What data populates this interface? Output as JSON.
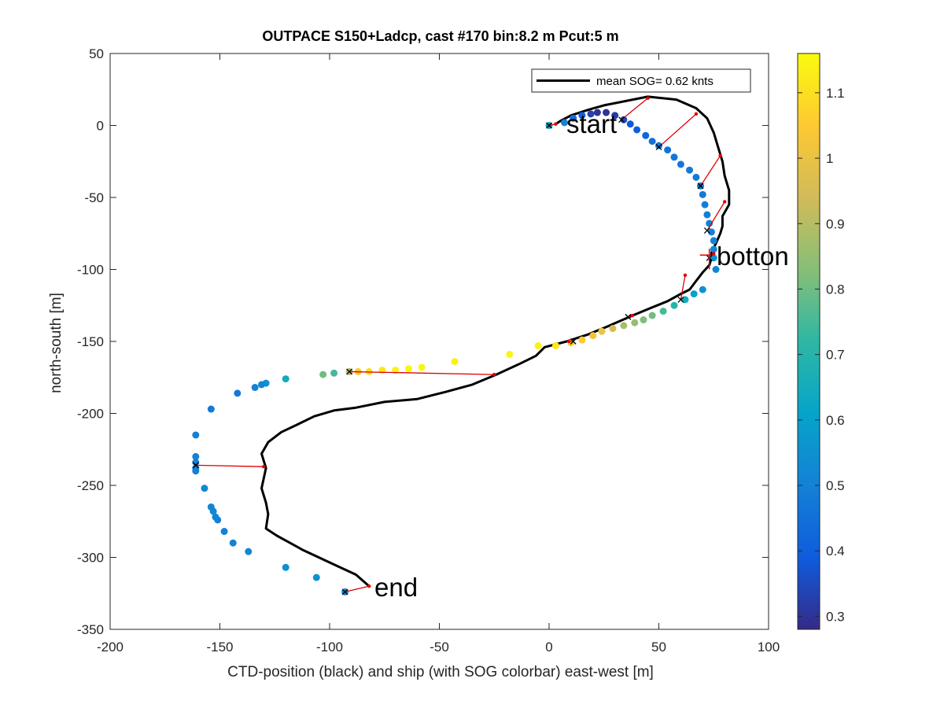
{
  "chart_data": {
    "type": "scatter",
    "title": "OUTPACE S150+Ladcp, cast #170 bin:8.2 m  Pcut:5 m",
    "xlabel": "CTD-position (black) and ship (with SOG colorbar) east-west [m]",
    "ylabel": "north-south [m]",
    "xlim": [
      -200,
      100
    ],
    "ylim": [
      -350,
      50
    ],
    "xticks": [
      -200,
      -150,
      -100,
      -50,
      0,
      50,
      100
    ],
    "yticks": [
      50,
      0,
      -50,
      -100,
      -150,
      -200,
      -250,
      -300,
      -350
    ],
    "grid": false,
    "legend": {
      "placement": "top-right",
      "entries": [
        "mean SOG=  0.62 knts"
      ]
    },
    "colorbar": {
      "range": [
        0.28,
        1.16
      ],
      "ticks": [
        0.3,
        0.4,
        0.5,
        0.6,
        0.7,
        0.8,
        0.9,
        1,
        1.1
      ],
      "tick_labels": [
        "0.3",
        "0.4",
        "0.5",
        "0.6",
        "0.7",
        "0.8",
        "0.9",
        "1",
        "1.1"
      ],
      "colormap": [
        "#352a87",
        "#0f5cdd",
        "#1481d6",
        "#06a4ca",
        "#2eb7a4",
        "#87bf77",
        "#d1bb59",
        "#fec832",
        "#f9fb0e"
      ]
    },
    "annotations": [
      {
        "text": "start",
        "x": 8,
        "y": 0
      },
      {
        "text": "botton",
        "x": 78,
        "y": -92
      },
      {
        "text": "end",
        "x": -81,
        "y": -320
      }
    ],
    "ctd_track": [
      [
        -82,
        -320
      ],
      [
        -88,
        -312
      ],
      [
        -98,
        -305
      ],
      [
        -105,
        -300
      ],
      [
        -112,
        -295
      ],
      [
        -118,
        -290
      ],
      [
        -124,
        -285
      ],
      [
        -129,
        -280
      ],
      [
        -128,
        -270
      ],
      [
        -129,
        -262
      ],
      [
        -131,
        -252
      ],
      [
        -130,
        -245
      ],
      [
        -129,
        -238
      ],
      [
        -130,
        -233
      ],
      [
        -131,
        -228
      ],
      [
        -128,
        -220
      ],
      [
        -122,
        -213
      ],
      [
        -115,
        -208
      ],
      [
        -107,
        -202
      ],
      [
        -98,
        -198
      ],
      [
        -88,
        -196
      ],
      [
        -75,
        -192
      ],
      [
        -60,
        -190
      ],
      [
        -47,
        -185
      ],
      [
        -35,
        -180
      ],
      [
        -24,
        -173
      ],
      [
        -14,
        -166
      ],
      [
        -6,
        -160
      ],
      [
        -2,
        -154
      ],
      [
        8,
        -150
      ],
      [
        18,
        -145
      ],
      [
        26,
        -140
      ],
      [
        38,
        -132
      ],
      [
        46,
        -127
      ],
      [
        54,
        -122
      ],
      [
        60,
        -117
      ],
      [
        64,
        -114
      ],
      [
        67,
        -108
      ],
      [
        70,
        -102
      ],
      [
        73,
        -97
      ],
      [
        74,
        -92
      ],
      [
        74,
        -88
      ],
      [
        76,
        -82
      ],
      [
        78,
        -75
      ],
      [
        79,
        -70
      ],
      [
        79,
        -63
      ],
      [
        82,
        -55
      ],
      [
        82,
        -45
      ],
      [
        80,
        -35
      ],
      [
        79,
        -25
      ],
      [
        77,
        -15
      ],
      [
        75,
        -5
      ],
      [
        72,
        5
      ],
      [
        67,
        12
      ],
      [
        58,
        18
      ],
      [
        45,
        20
      ],
      [
        35,
        17
      ],
      [
        25,
        14
      ],
      [
        18,
        11
      ],
      [
        10,
        7
      ],
      [
        5,
        3
      ],
      [
        3,
        1
      ]
    ],
    "ship_points": [
      {
        "x": 0,
        "y": 0,
        "v": 0.6
      },
      {
        "x": 7,
        "y": 2,
        "v": 0.5
      },
      {
        "x": 11,
        "y": 5,
        "v": 0.45
      },
      {
        "x": 15,
        "y": 7,
        "v": 0.4
      },
      {
        "x": 19,
        "y": 8,
        "v": 0.33
      },
      {
        "x": 22,
        "y": 9,
        "v": 0.3
      },
      {
        "x": 26,
        "y": 9,
        "v": 0.3
      },
      {
        "x": 30,
        "y": 7,
        "v": 0.32
      },
      {
        "x": 34,
        "y": 4,
        "v": 0.35
      },
      {
        "x": 37,
        "y": 1,
        "v": 0.38
      },
      {
        "x": 40,
        "y": -3,
        "v": 0.4
      },
      {
        "x": 44,
        "y": -7,
        "v": 0.42
      },
      {
        "x": 47,
        "y": -11,
        "v": 0.45
      },
      {
        "x": 50,
        "y": -14,
        "v": 0.46
      },
      {
        "x": 54,
        "y": -17,
        "v": 0.46
      },
      {
        "x": 57,
        "y": -22,
        "v": 0.47
      },
      {
        "x": 60,
        "y": -27,
        "v": 0.47
      },
      {
        "x": 64,
        "y": -31,
        "v": 0.48
      },
      {
        "x": 67,
        "y": -36,
        "v": 0.48
      },
      {
        "x": 69,
        "y": -42,
        "v": 0.48
      },
      {
        "x": 70,
        "y": -48,
        "v": 0.48
      },
      {
        "x": 71,
        "y": -55,
        "v": 0.49
      },
      {
        "x": 72,
        "y": -62,
        "v": 0.49
      },
      {
        "x": 73,
        "y": -68,
        "v": 0.5
      },
      {
        "x": 74,
        "y": -74,
        "v": 0.5
      },
      {
        "x": 75,
        "y": -80,
        "v": 0.5
      },
      {
        "x": 75,
        "y": -86,
        "v": 0.52
      },
      {
        "x": 75,
        "y": -92,
        "v": 0.55
      },
      {
        "x": 76,
        "y": -100,
        "v": 0.52
      },
      {
        "x": 70,
        "y": -114,
        "v": 0.55
      },
      {
        "x": 66,
        "y": -117,
        "v": 0.6
      },
      {
        "x": 62,
        "y": -121,
        "v": 0.65
      },
      {
        "x": 57,
        "y": -125,
        "v": 0.7
      },
      {
        "x": 52,
        "y": -129,
        "v": 0.75
      },
      {
        "x": 47,
        "y": -132,
        "v": 0.8
      },
      {
        "x": 43,
        "y": -135,
        "v": 0.82
      },
      {
        "x": 39,
        "y": -137,
        "v": 0.85
      },
      {
        "x": 34,
        "y": -139,
        "v": 0.88
      },
      {
        "x": 29,
        "y": -141,
        "v": 0.95
      },
      {
        "x": 24,
        "y": -143,
        "v": 1.0
      },
      {
        "x": 20,
        "y": -146,
        "v": 1.02
      },
      {
        "x": 15,
        "y": -149,
        "v": 1.05
      },
      {
        "x": 10,
        "y": -151,
        "v": 1.08
      },
      {
        "x": 3,
        "y": -153,
        "v": 1.12
      },
      {
        "x": -5,
        "y": -153,
        "v": 1.14
      },
      {
        "x": -18,
        "y": -159,
        "v": 1.15
      },
      {
        "x": -43,
        "y": -164,
        "v": 1.14
      },
      {
        "x": -58,
        "y": -168,
        "v": 1.15
      },
      {
        "x": -64,
        "y": -169,
        "v": 1.15
      },
      {
        "x": -70,
        "y": -170,
        "v": 1.14
      },
      {
        "x": -76,
        "y": -170,
        "v": 1.12
      },
      {
        "x": -82,
        "y": -171,
        "v": 1.1
      },
      {
        "x": -87,
        "y": -171,
        "v": 1.05
      },
      {
        "x": -91,
        "y": -171,
        "v": 0.9
      },
      {
        "x": -98,
        "y": -172,
        "v": 0.75
      },
      {
        "x": -103,
        "y": -173,
        "v": 0.8
      },
      {
        "x": -120,
        "y": -176,
        "v": 0.65
      },
      {
        "x": -129,
        "y": -179,
        "v": 0.55
      },
      {
        "x": -131,
        "y": -180,
        "v": 0.52
      },
      {
        "x": -134,
        "y": -182,
        "v": 0.5
      },
      {
        "x": -142,
        "y": -186,
        "v": 0.48
      },
      {
        "x": -154,
        "y": -197,
        "v": 0.48
      },
      {
        "x": -161,
        "y": -215,
        "v": 0.5
      },
      {
        "x": -161,
        "y": -230,
        "v": 0.5
      },
      {
        "x": -161,
        "y": -234,
        "v": 0.5
      },
      {
        "x": -161,
        "y": -238,
        "v": 0.5
      },
      {
        "x": -161,
        "y": -240,
        "v": 0.5
      },
      {
        "x": -157,
        "y": -252,
        "v": 0.52
      },
      {
        "x": -154,
        "y": -265,
        "v": 0.52
      },
      {
        "x": -153,
        "y": -268,
        "v": 0.52
      },
      {
        "x": -152,
        "y": -272,
        "v": 0.52
      },
      {
        "x": -151,
        "y": -274,
        "v": 0.5
      },
      {
        "x": -148,
        "y": -282,
        "v": 0.5
      },
      {
        "x": -144,
        "y": -290,
        "v": 0.5
      },
      {
        "x": -137,
        "y": -296,
        "v": 0.52
      },
      {
        "x": -120,
        "y": -307,
        "v": 0.55
      },
      {
        "x": -106,
        "y": -314,
        "v": 0.55
      },
      {
        "x": -93,
        "y": -324,
        "v": 0.52
      }
    ],
    "connectors": [
      {
        "ship": [
          -93,
          -324
        ],
        "ctd": [
          -82,
          -320
        ]
      },
      {
        "ship": [
          -161,
          -236
        ],
        "ctd": [
          -130,
          -237
        ]
      },
      {
        "ship": [
          -91,
          -171
        ],
        "ctd": [
          -25,
          -173
        ]
      },
      {
        "ship": [
          11,
          -150
        ],
        "ctd": [
          9,
          -150
        ]
      },
      {
        "ship": [
          36,
          -133
        ],
        "ctd": [
          38,
          -132
        ]
      },
      {
        "ship": [
          60,
          -121
        ],
        "ctd": [
          62,
          -104
        ]
      },
      {
        "ship": [
          73,
          -92
        ],
        "ctd": [
          75,
          -89
        ]
      },
      {
        "ship": [
          72,
          -73
        ],
        "ctd": [
          80,
          -53
        ]
      },
      {
        "ship": [
          69,
          -42
        ],
        "ctd": [
          78,
          -21
        ]
      },
      {
        "ship": [
          50,
          -15
        ],
        "ctd": [
          67,
          8
        ]
      },
      {
        "ship": [
          33,
          4
        ],
        "ctd": [
          45,
          19
        ]
      },
      {
        "ship": [
          0,
          0
        ],
        "ctd": [
          3,
          1
        ]
      }
    ]
  }
}
